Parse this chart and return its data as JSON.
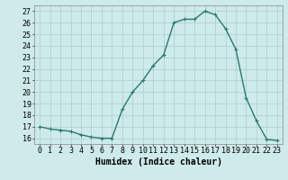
{
  "x": [
    0,
    1,
    2,
    3,
    4,
    5,
    6,
    7,
    8,
    9,
    10,
    11,
    12,
    13,
    14,
    15,
    16,
    17,
    18,
    19,
    20,
    21,
    22,
    23
  ],
  "y": [
    17.0,
    16.8,
    16.7,
    16.6,
    16.3,
    16.1,
    16.0,
    16.0,
    18.5,
    20.0,
    21.0,
    22.3,
    23.2,
    26.0,
    26.3,
    26.3,
    27.0,
    26.7,
    25.5,
    23.7,
    19.5,
    17.5,
    15.9,
    15.8
  ],
  "xlabel": "Humidex (Indice chaleur)",
  "bg_color": "#ceeaea",
  "grid_color": "#aacece",
  "line_color": "#2a7a6e",
  "marker": "+",
  "xlim": [
    -0.5,
    23.5
  ],
  "ylim": [
    15.5,
    27.5
  ],
  "yticks": [
    16,
    17,
    18,
    19,
    20,
    21,
    22,
    23,
    24,
    25,
    26,
    27
  ],
  "xticks": [
    0,
    1,
    2,
    3,
    4,
    5,
    6,
    7,
    8,
    9,
    10,
    11,
    12,
    13,
    14,
    15,
    16,
    17,
    18,
    19,
    20,
    21,
    22,
    23
  ],
  "xlabel_fontsize": 7,
  "tick_fontsize": 6,
  "line_width": 1.0,
  "marker_size": 3,
  "marker_edge_width": 0.8
}
